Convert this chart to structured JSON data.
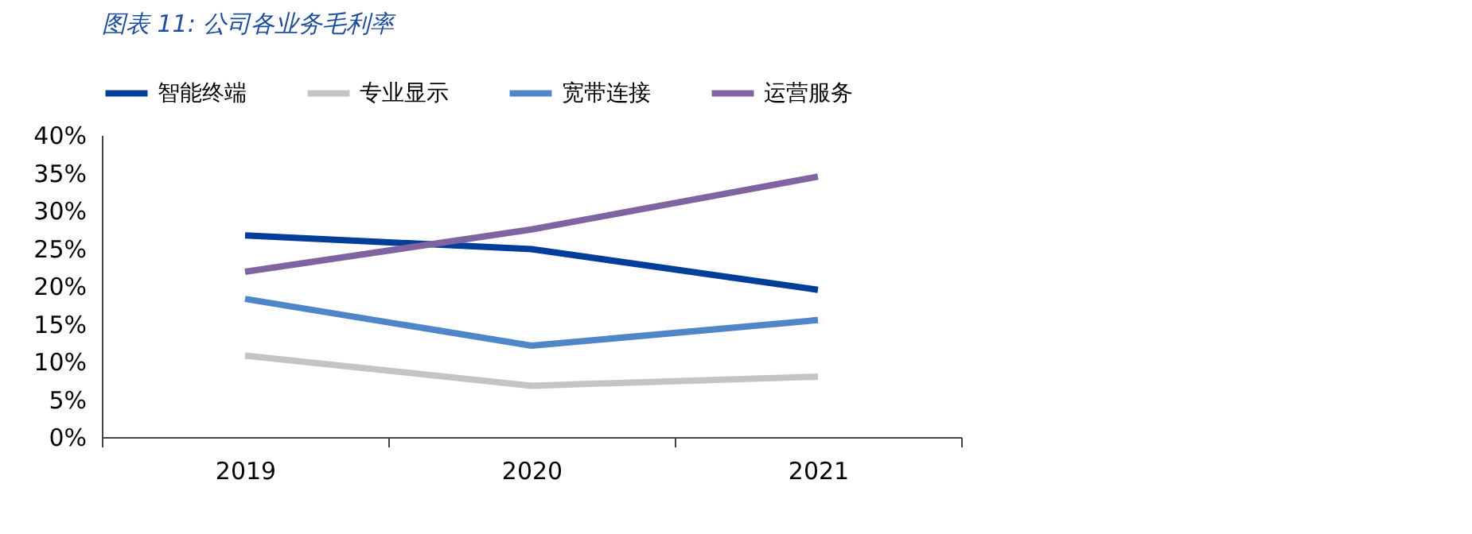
{
  "chart_data": {
    "type": "line",
    "title": "图表 11:  公司各业务毛利率",
    "categories": [
      "2019",
      "2020",
      "2021"
    ],
    "series": [
      {
        "name": "智能终端",
        "color": "#003e9a",
        "values": [
          26.7,
          24.9,
          19.5
        ]
      },
      {
        "name": "专业显示",
        "color": "#c4c4c4",
        "values": [
          10.8,
          6.8,
          8.0
        ]
      },
      {
        "name": "宽带连接",
        "color": "#4f86c8",
        "values": [
          18.3,
          12.1,
          15.5
        ]
      },
      {
        "name": "运营服务",
        "color": "#8064a2",
        "values": [
          21.9,
          27.5,
          34.5
        ]
      }
    ],
    "ylim": [
      0,
      40
    ],
    "yticks": [
      {
        "value": 0,
        "label": "0%"
      },
      {
        "value": 5,
        "label": "5%"
      },
      {
        "value": 10,
        "label": "10%"
      },
      {
        "value": 15,
        "label": "15%"
      },
      {
        "value": 20,
        "label": "20%"
      },
      {
        "value": 25,
        "label": "25%"
      },
      {
        "value": 30,
        "label": "30%"
      },
      {
        "value": 35,
        "label": "35%"
      },
      {
        "value": 40,
        "label": "40%"
      }
    ],
    "grid": false,
    "legend": "top",
    "marker": "none",
    "line_style": "solid"
  }
}
